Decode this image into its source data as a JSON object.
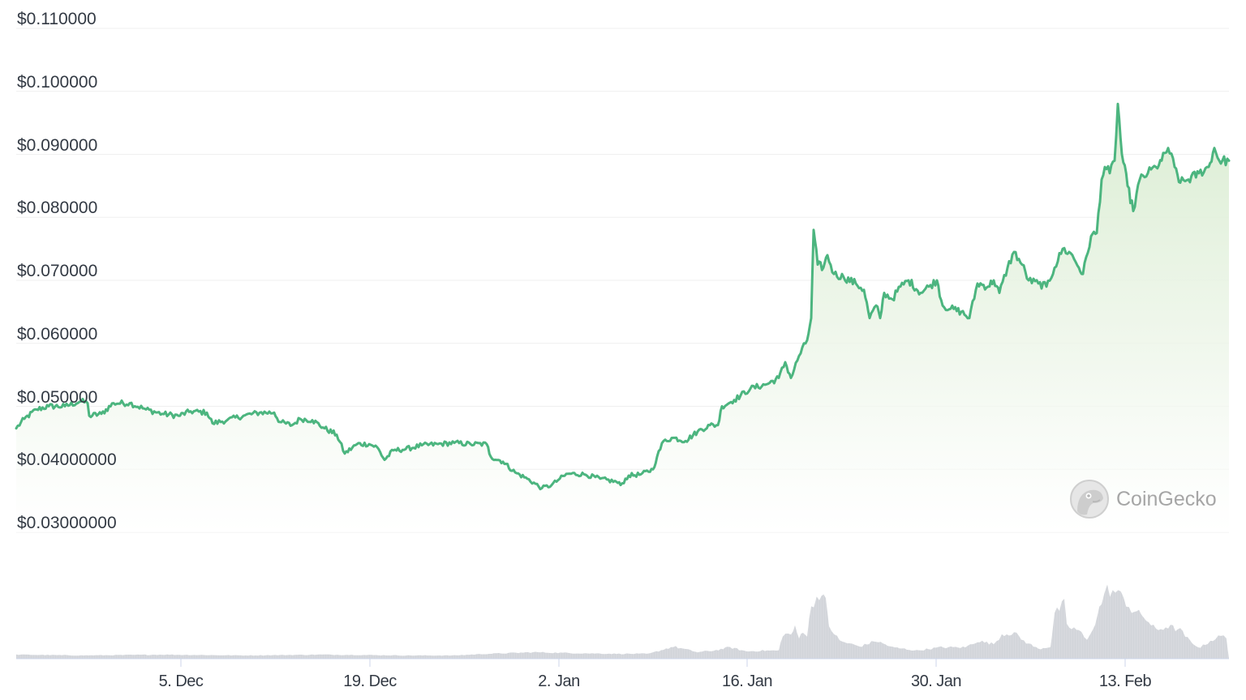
{
  "chart_data": {
    "type": "line",
    "title": "",
    "xlabel": "",
    "ylabel": "",
    "ylim": [
      0.03,
      0.11
    ],
    "grid": true,
    "legend": null,
    "y_ticks": [
      "$0.110000",
      "$0.100000",
      "$0.090000",
      "$0.080000",
      "$0.070000",
      "$0.060000",
      "$0.050000",
      "$0.04000000",
      "$0.03000000"
    ],
    "y_tick_values": [
      0.11,
      0.1,
      0.09,
      0.08,
      0.07,
      0.06,
      0.05,
      0.04,
      0.03
    ],
    "x_ticks": [
      "5. Dec",
      "19. Dec",
      "2. Jan",
      "16. Jan",
      "30. Jan",
      "13. Feb"
    ],
    "x": [
      "22 Nov",
      "25 Nov",
      "28 Nov",
      "1 Dec",
      "5 Dec",
      "8 Dec",
      "12 Dec",
      "15 Dec",
      "19 Dec",
      "22 Dec",
      "26 Dec",
      "29 Dec",
      "2 Jan",
      "5 Jan",
      "9 Jan",
      "12 Jan",
      "16 Jan",
      "18 Jan",
      "20 Jan",
      "21 Jan",
      "23 Jan",
      "26 Jan",
      "30 Jan",
      "2 Feb",
      "5 Feb",
      "7 Feb",
      "9 Feb",
      "10 Feb",
      "12 Feb",
      "13 Feb",
      "14 Feb",
      "16 Feb",
      "18 Feb",
      "20 Feb"
    ],
    "series": [
      {
        "name": "Price (USD)",
        "color": "#4cb57f",
        "values": [
          0.0465,
          0.05,
          0.0508,
          0.0497,
          0.049,
          0.0488,
          0.0492,
          0.0475,
          0.043,
          0.044,
          0.0442,
          0.044,
          0.0365,
          0.039,
          0.0385,
          0.0445,
          0.052,
          0.0545,
          0.059,
          0.078,
          0.07,
          0.065,
          0.07,
          0.064,
          0.07,
          0.073,
          0.069,
          0.076,
          0.073,
          0.088,
          0.098,
          0.082,
          0.092,
          0.089
        ]
      },
      {
        "name": "Volume",
        "color": "#d1d4d9",
        "values_relative": [
          0.03,
          0.03,
          0.04,
          0.04,
          0.04,
          0.04,
          0.04,
          0.04,
          0.03,
          0.05,
          0.05,
          0.04,
          0.05,
          0.06,
          0.05,
          0.18,
          0.12,
          0.28,
          0.35,
          0.85,
          0.25,
          0.2,
          0.15,
          0.22,
          0.3,
          0.2,
          0.7,
          0.4,
          0.7,
          1.0,
          0.85,
          0.55,
          0.25,
          0.3
        ]
      }
    ]
  },
  "axes": {
    "y_labels": [
      "$0.110000",
      "$0.100000",
      "$0.090000",
      "$0.080000",
      "$0.070000",
      "$0.060000",
      "$0.050000",
      "$0.04000000",
      "$0.03000000"
    ],
    "x_labels": [
      "5. Dec",
      "19. Dec",
      "2. Jan",
      "16. Jan",
      "30. Jan",
      "13. Feb"
    ]
  },
  "watermark": {
    "text": "CoinGecko"
  },
  "colors": {
    "line": "#4cb57f",
    "fill_top": "#e3f1dc",
    "grid": "#eeeeee",
    "volume": "#d1d4d9"
  }
}
